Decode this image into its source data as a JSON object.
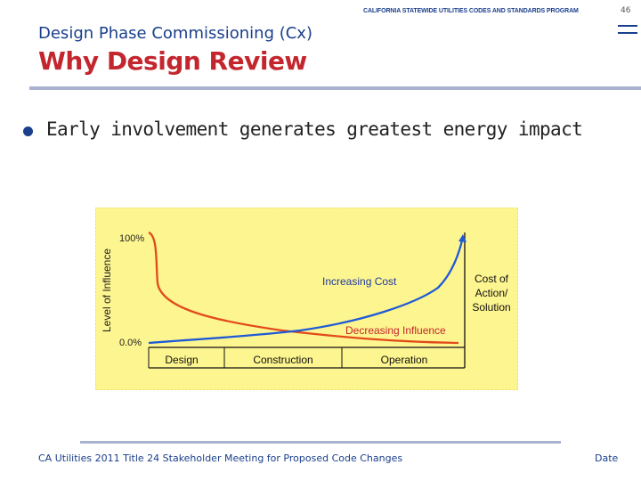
{
  "header": {
    "program": "CALIFORNIA STATEWIDE UTILITIES CODES AND STANDARDS PROGRAM",
    "page_number": "46"
  },
  "slide": {
    "subtitle": "Design Phase Commissioning (Cx)",
    "title": "Why Design Review",
    "bullets": [
      "Early involvement generates greatest energy impact"
    ]
  },
  "chart_data": {
    "type": "line",
    "title": "",
    "ylabel": "Level of Influence",
    "y_ticks": [
      "100%",
      "0.0%"
    ],
    "categories": [
      "Design",
      "Construction",
      "Operation"
    ],
    "series": [
      {
        "name": "Increasing Cost",
        "color": "#1f5ad6",
        "trend": "increasing"
      },
      {
        "name": "Decreasing Influence",
        "color": "#e24a1c",
        "trend": "decreasing"
      }
    ],
    "right_label": "Cost of\nAction/\nSolution",
    "background": "#fdf58f"
  },
  "footer": {
    "text": "CA Utilities 2011 Title 24 Stakeholder Meeting for Proposed Code Changes",
    "date": "Date"
  },
  "colors": {
    "accent": "#1a3f8c",
    "title": "#c4262e"
  }
}
